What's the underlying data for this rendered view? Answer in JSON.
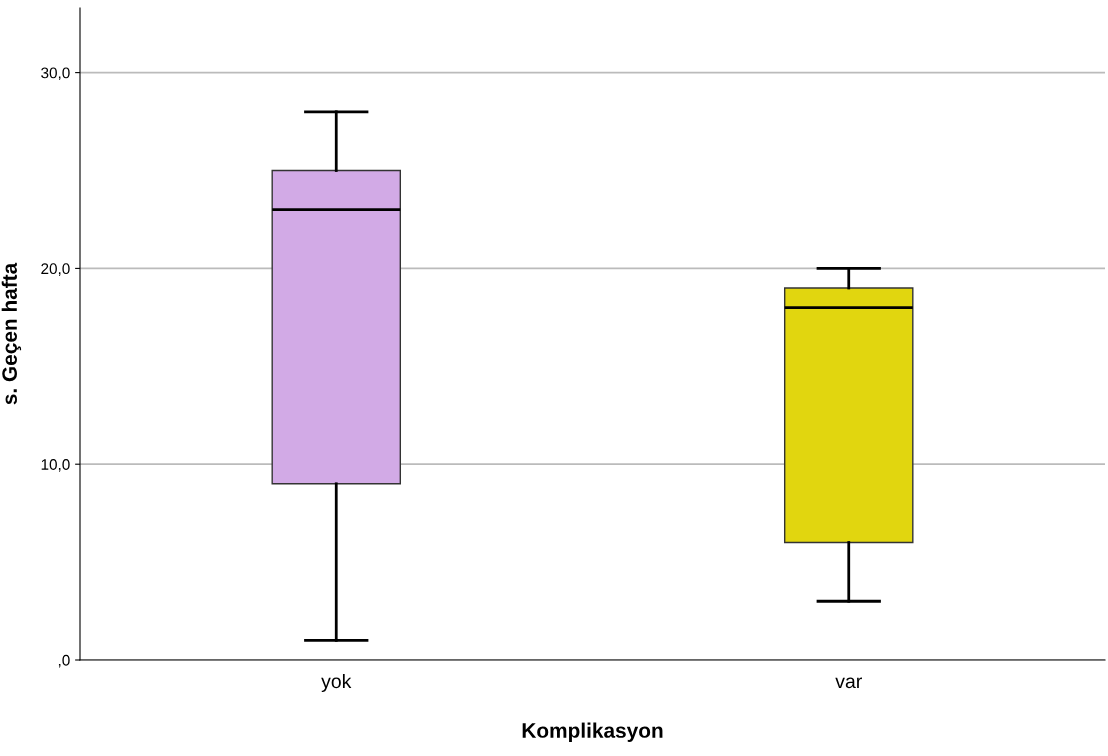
{
  "chart_data": {
    "type": "box",
    "xlabel": "Komplikasyon",
    "ylabel": "s. Geçen hafta",
    "categories": [
      "yok",
      "var"
    ],
    "boxes": [
      {
        "low": 1,
        "q1": 9,
        "median": 23,
        "q3": 25,
        "high": 28
      },
      {
        "low": 3,
        "q1": 6,
        "median": 18,
        "q3": 19,
        "high": 20
      }
    ],
    "colors": [
      "#d2aae6",
      "#e1d60f"
    ],
    "ylim": [
      0,
      33.3
    ],
    "yticks": [
      {
        "value": 0,
        "label": ",0"
      },
      {
        "value": 10,
        "label": "10,0"
      },
      {
        "value": 20,
        "label": "20,0"
      },
      {
        "value": 30,
        "label": "30,0"
      }
    ],
    "grid": "y"
  }
}
